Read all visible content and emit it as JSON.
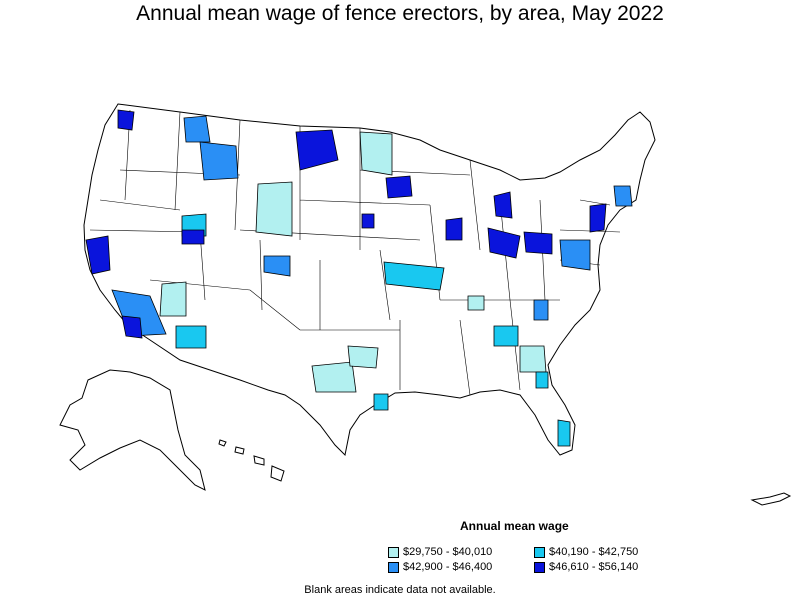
{
  "title": "Annual mean wage of fence erectors, by area, May 2022",
  "legend": {
    "title": "Annual mean wage",
    "items": [
      {
        "label": "$29,750 - $40,010",
        "color": "#b2f0f0"
      },
      {
        "label": "$40,190 - $42,750",
        "color": "#19c8f0"
      },
      {
        "label": "$42,900 - $46,400",
        "color": "#2a8ff5"
      },
      {
        "label": "$46,610 - $56,140",
        "color": "#0a14dc"
      }
    ]
  },
  "footnote": "Blank areas indicate data not available."
}
